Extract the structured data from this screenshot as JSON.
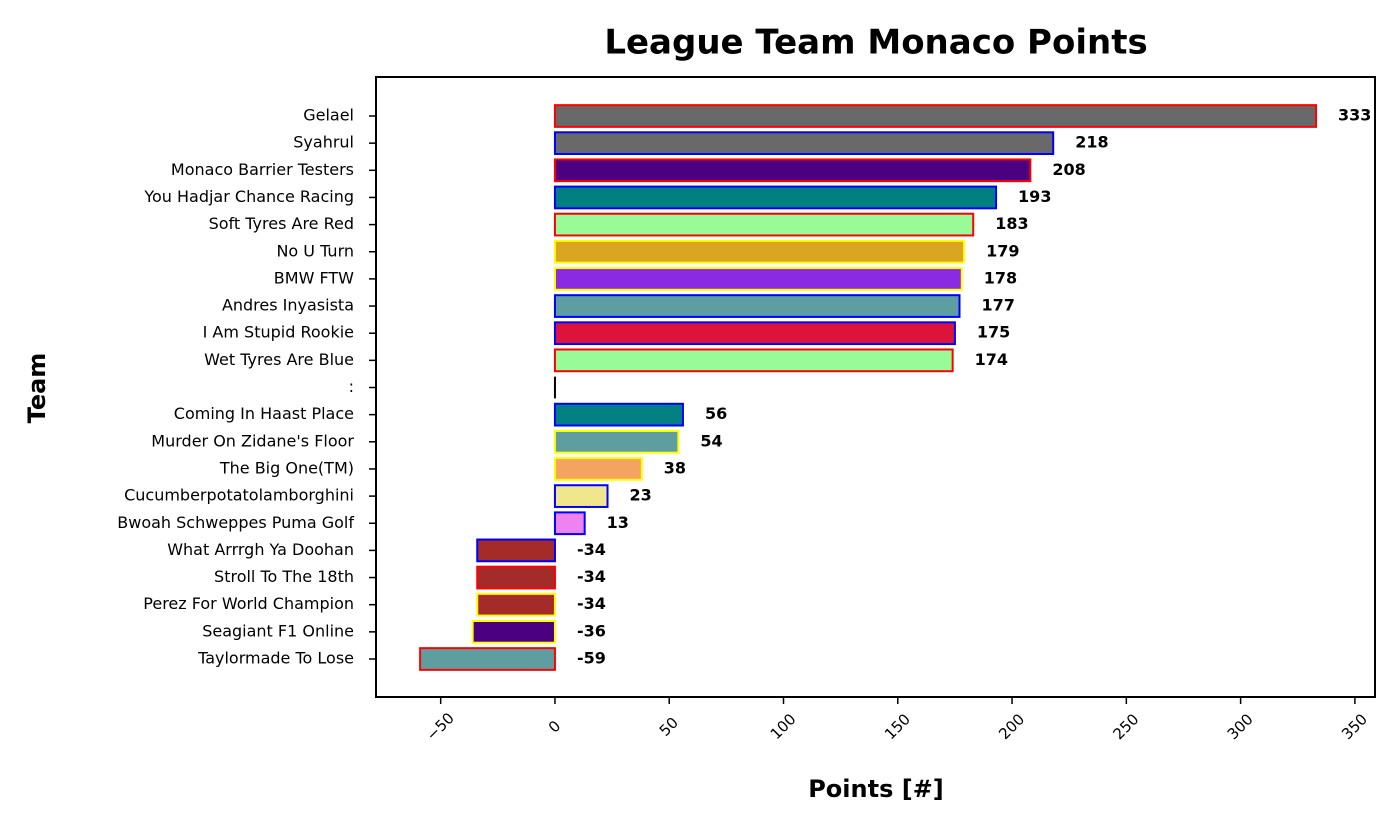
{
  "chart_data": {
    "type": "barh",
    "title": "League Team Monaco Points",
    "x_label": "Points [#]",
    "y_label": "Team",
    "categories": [
      "Gelael",
      "Syahrul",
      "Monaco Barrier Testers",
      "You Hadjar Chance Racing",
      "Soft Tyres Are Red",
      "No U Turn",
      "BMW FTW",
      "Andres Inyasista",
      "I Am Stupid Rookie",
      "Wet Tyres Are Blue",
      ":",
      "Coming In Haast Place",
      "Murder On Zidane's Floor",
      "The Big One(TM)",
      "Cucumberpotatolamborghini",
      "Bwoah Schweppes Puma Golf",
      "What Arrrgh Ya Doohan",
      "Stroll To The 18th",
      "Perez For World Champion",
      "Seagiant F1 Online",
      "Taylormade To Lose"
    ],
    "values": [
      333,
      218,
      208,
      193,
      183,
      179,
      178,
      177,
      175,
      174,
      null,
      56,
      54,
      38,
      23,
      13,
      -34,
      -34,
      -34,
      -36,
      -59
    ],
    "colors": [
      "#696969",
      "#696969",
      "#4b0082",
      "#008080",
      "#98fb98",
      "#daa520",
      "#8a2be2",
      "#5f9ea0",
      "#dc143c",
      "#98fb98",
      "#000000",
      "#008080",
      "#5f9ea0",
      "#f4a460",
      "#f0e68c",
      "#ee82ee",
      "#a52a2a",
      "#a52a2a",
      "#a52a2a",
      "#4b0082",
      "#5f9ea0"
    ],
    "edge_colors": [
      "#ff0000",
      "#0000ff",
      "#ff0000",
      "#0000ff",
      "#ff0000",
      "#ffff00",
      "#ffff00",
      "#0000ff",
      "#0000ff",
      "#ff0000",
      "#000000",
      "#0000ff",
      "#ffff00",
      "#ffff00",
      "#0000ff",
      "#0000ff",
      "#0000ff",
      "#ff0000",
      "#ffff00",
      "#ffff00",
      "#ff0000"
    ],
    "xlim": [
      -78.3,
      358.8
    ],
    "xticks": [
      {
        "value": -50,
        "label": "−50"
      },
      0,
      50,
      100,
      150,
      200,
      250,
      300,
      350
    ],
    "grid": false
  }
}
